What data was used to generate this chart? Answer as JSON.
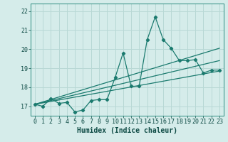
{
  "xlabel": "Humidex (Indice chaleur)",
  "bg_color": "#d5ecea",
  "grid_color": "#b8d8d5",
  "line_color": "#1a7a6e",
  "xlim": [
    -0.5,
    23.5
  ],
  "ylim": [
    16.5,
    22.4
  ],
  "yticks": [
    17,
    18,
    19,
    20,
    21,
    22
  ],
  "xticks": [
    0,
    1,
    2,
    3,
    4,
    5,
    6,
    7,
    8,
    9,
    10,
    11,
    12,
    13,
    14,
    15,
    16,
    17,
    18,
    19,
    20,
    21,
    22,
    23
  ],
  "series1_x": [
    0,
    1,
    2,
    3,
    4,
    5,
    6,
    7,
    8,
    9,
    10,
    11,
    12,
    13,
    14,
    15,
    16,
    17,
    18,
    19,
    20,
    21,
    22,
    23
  ],
  "series1_y": [
    17.1,
    17.0,
    17.4,
    17.15,
    17.2,
    16.7,
    16.8,
    17.3,
    17.35,
    17.35,
    18.5,
    19.8,
    18.05,
    18.05,
    20.5,
    21.7,
    20.5,
    20.05,
    19.4,
    19.4,
    19.45,
    18.75,
    18.9,
    18.9
  ],
  "series2_x": [
    0,
    23
  ],
  "series2_y": [
    17.1,
    19.4
  ],
  "series3_x": [
    0,
    23
  ],
  "series3_y": [
    17.1,
    18.85
  ],
  "series4_x": [
    0,
    23
  ],
  "series4_y": [
    17.1,
    20.05
  ]
}
